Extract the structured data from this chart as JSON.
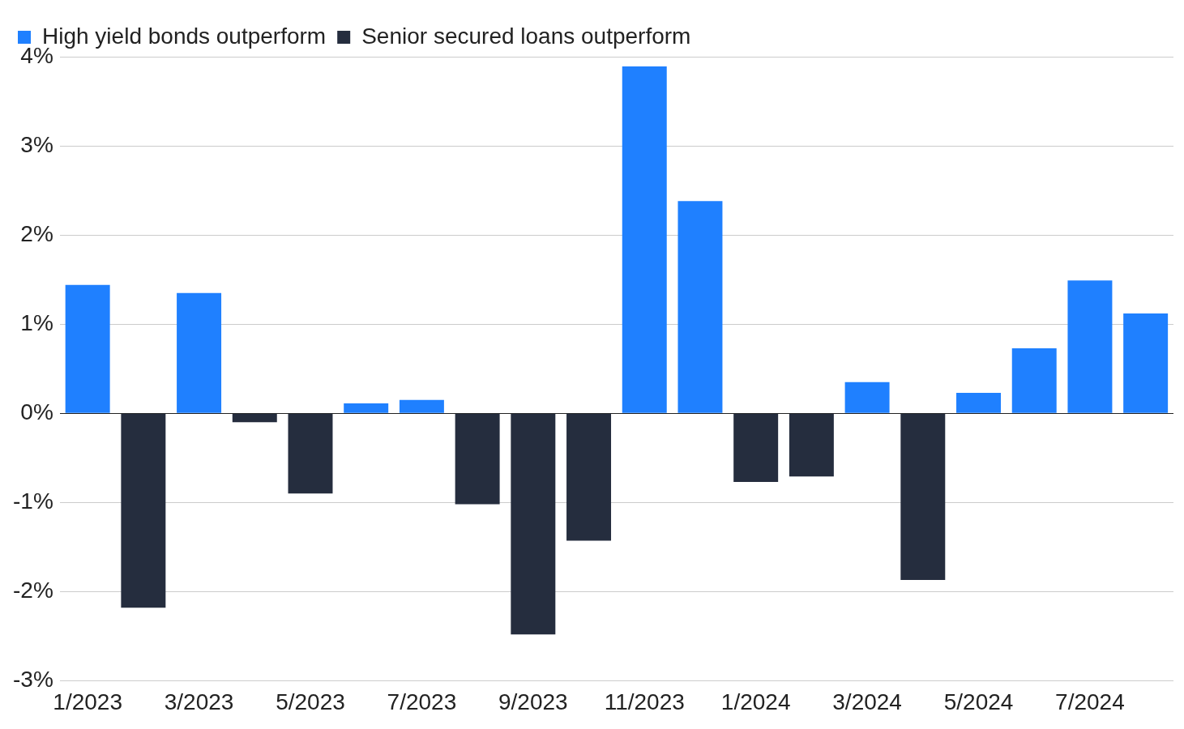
{
  "chart_data": {
    "type": "bar",
    "stacked": true,
    "categories": [
      "1/2023",
      null,
      "3/2023",
      null,
      "5/2023",
      null,
      "7/2023",
      null,
      "9/2023",
      null,
      "11/2023",
      null,
      "1/2024",
      null,
      "3/2024",
      null,
      "5/2024",
      null,
      "7/2024",
      null
    ],
    "series": [
      {
        "name": "High yield bonds outperform",
        "color": "#1f80ff",
        "values": [
          1.44,
          null,
          1.35,
          null,
          null,
          0.11,
          0.15,
          null,
          null,
          null,
          3.89,
          2.38,
          null,
          null,
          0.35,
          null,
          0.23,
          0.73,
          1.49,
          1.12
        ]
      },
      {
        "name": "Senior secured loans outperform",
        "color": "#252d3e",
        "values": [
          null,
          -2.18,
          null,
          -0.1,
          -0.9,
          null,
          null,
          -1.02,
          -2.48,
          -1.43,
          null,
          null,
          -0.77,
          -0.71,
          null,
          -1.87,
          null,
          null,
          null,
          null
        ]
      }
    ],
    "ylim": [
      -3,
      4
    ],
    "yticks": [
      {
        "value": -3,
        "label": "-3%"
      },
      {
        "value": -2,
        "label": "-2%"
      },
      {
        "value": -1,
        "label": "-1%"
      },
      {
        "value": 0,
        "label": "0%"
      },
      {
        "value": 1,
        "label": "1%"
      },
      {
        "value": 2,
        "label": "2%"
      },
      {
        "value": 3,
        "label": "3%"
      },
      {
        "value": 4,
        "label": "4%"
      }
    ],
    "grid": "y",
    "legend": "top left"
  }
}
